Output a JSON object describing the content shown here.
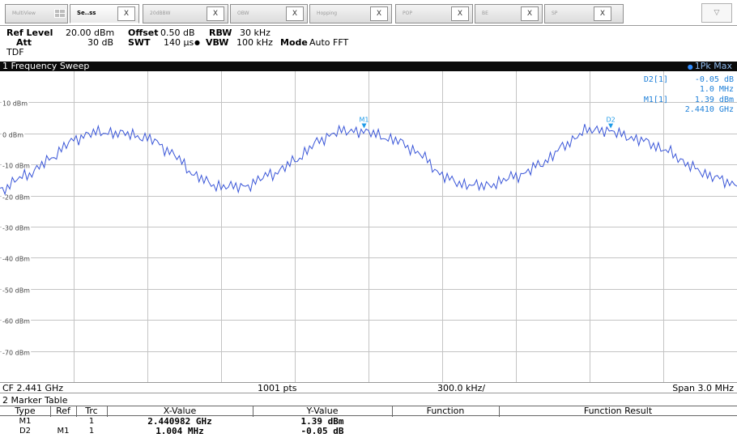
{
  "tabs": [
    {
      "label": "MultiView",
      "active": false
    },
    {
      "label": "Se..ss",
      "active": true
    },
    {
      "label": "20dBBW",
      "active": false
    },
    {
      "label": "OBW",
      "active": false
    },
    {
      "label": "Hopping",
      "active": false
    },
    {
      "label": "POP",
      "active": false
    },
    {
      "label": "BE",
      "active": false
    },
    {
      "label": "SP",
      "active": false
    }
  ],
  "tab_close_glyph": "X",
  "menu_glyph": "▽",
  "settings": {
    "ref_level_label": "Ref Level",
    "ref_level_value": "20.00 dBm",
    "offset_label": "Offset",
    "offset_value": "0.50 dB",
    "rbw_label": "RBW",
    "rbw_value": "30 kHz",
    "att_label": "Att",
    "att_value": "30 dB",
    "swt_label": "SWT",
    "swt_value": "140 µs",
    "swt_sep": "●",
    "vbw_label": "VBW",
    "vbw_value": "100 kHz",
    "mode_label": "Mode",
    "mode_value": "Auto FFT",
    "tdf_label": "TDF"
  },
  "sweep": {
    "title": "1 Frequency Sweep",
    "trace_label": "1Pk Max"
  },
  "marker_readout": {
    "d2_name": "D2[1]",
    "d2_level": "-0.05 dB",
    "d2_freq": "1.0 MHz",
    "m1_name": "M1[1]",
    "m1_level": "1.39 dBm",
    "m1_freq": "2.4410 GHz"
  },
  "markers_on_plot": [
    {
      "label": "M1",
      "x_mhz": 2440.982,
      "y_dbm": 1.39
    },
    {
      "label": "D2",
      "x_mhz": 2441.986,
      "y_dbm": 1.34
    }
  ],
  "chart_data": {
    "type": "line",
    "x_unit": "MHz",
    "y_unit": "dBm",
    "xlim": [
      2439.5,
      2442.5
    ],
    "ylim": [
      -80,
      20
    ],
    "y_ticks": [
      10,
      0,
      -10,
      -20,
      -30,
      -40,
      -50,
      -60,
      -70
    ],
    "y_tick_labels": [
      "10 dBm",
      "0 dBm",
      "-10 dBm",
      "-20 dBm",
      "-30 dBm",
      "-40 dBm",
      "-50 dBm",
      "-60 dBm",
      "-70 dBm"
    ],
    "grid": true,
    "line_color": "#3a56d8",
    "marker_color": "#1d9ae8",
    "series": [
      {
        "values_x": [
          2439.5,
          2439.6,
          2439.7,
          2439.8,
          2439.9,
          2440.0,
          2440.1,
          2440.2,
          2440.3,
          2440.4,
          2440.5,
          2440.6,
          2440.7,
          2440.8,
          2440.9,
          2441.0,
          2441.1,
          2441.2,
          2441.3,
          2441.4,
          2441.5,
          2441.6,
          2441.7,
          2441.8,
          2441.9,
          2442.0,
          2442.1,
          2442.2,
          2442.3,
          2442.4,
          2442.5
        ],
        "values_y": [
          -19,
          -13,
          -8,
          -3,
          0.5,
          1,
          -2,
          -7,
          -13,
          -17,
          -18,
          -13,
          -8,
          -3,
          0.5,
          1.39,
          -2,
          -7,
          -13,
          -16,
          -17.5,
          -14,
          -9,
          -4,
          0.5,
          1.2,
          -1.5,
          -6,
          -10,
          -13,
          -17
        ]
      }
    ]
  },
  "cfbar": {
    "cf": "CF 2.441 GHz",
    "pts": "1001 pts",
    "div": "300.0 kHz/",
    "span": "Span 3.0 MHz"
  },
  "marker_table": {
    "title": "2 Marker Table",
    "headers": [
      "Type",
      "Ref",
      "Trc",
      "X-Value",
      "Y-Value",
      "Function",
      "Function Result"
    ],
    "rows": [
      {
        "type": "M1",
        "ref": "",
        "trc": "1",
        "x": "2.440982 GHz",
        "y": "1.39 dBm",
        "fn": "",
        "result": ""
      },
      {
        "type": "D2",
        "ref": "M1",
        "trc": "1",
        "x": "1.004 MHz",
        "y": "-0.05 dB",
        "fn": "",
        "result": ""
      }
    ]
  }
}
